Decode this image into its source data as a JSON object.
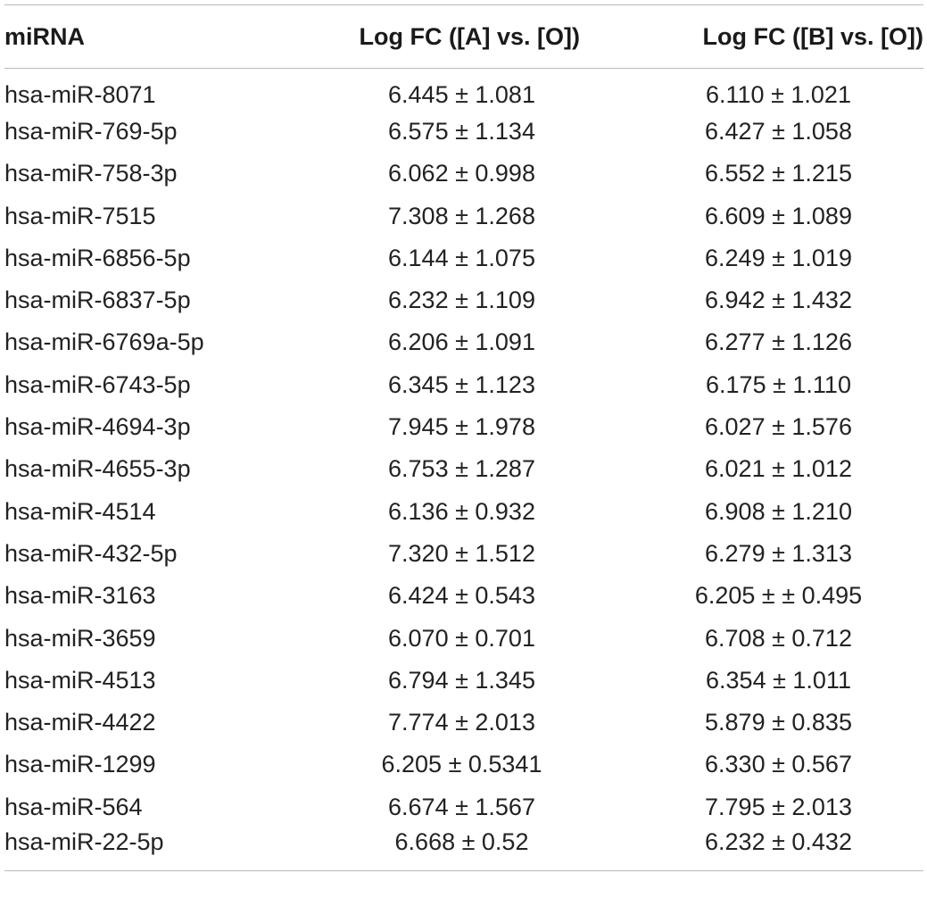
{
  "table": {
    "headers": [
      "miRNA",
      "Log FC ([A] vs. [O])",
      "Log FC ([B] vs. [O])"
    ],
    "rows": [
      [
        "hsa-miR-8071",
        "6.445 ± 1.081",
        "6.110 ± 1.021"
      ],
      [
        "hsa-miR-769-5p",
        "6.575 ± 1.134",
        "6.427 ± 1.058"
      ],
      [
        "hsa-miR-758-3p",
        "6.062 ± 0.998",
        "6.552 ± 1.215"
      ],
      [
        "hsa-miR-7515",
        "7.308 ± 1.268",
        "6.609 ± 1.089"
      ],
      [
        "hsa-miR-6856-5p",
        "6.144 ± 1.075",
        "6.249 ± 1.019"
      ],
      [
        "hsa-miR-6837-5p",
        "6.232 ± 1.109",
        "6.942 ± 1.432"
      ],
      [
        "hsa-miR-6769a-5p",
        "6.206 ± 1.091",
        "6.277 ± 1.126"
      ],
      [
        "hsa-miR-6743-5p",
        "6.345 ± 1.123",
        "6.175 ± 1.110"
      ],
      [
        "hsa-miR-4694-3p",
        "7.945 ± 1.978",
        "6.027 ± 1.576"
      ],
      [
        "hsa-miR-4655-3p",
        "6.753 ± 1.287",
        "6.021 ± 1.012"
      ],
      [
        "hsa-miR-4514",
        "6.136 ± 0.932",
        "6.908 ± 1.210"
      ],
      [
        "hsa-miR-432-5p",
        "7.320 ± 1.512",
        "6.279 ± 1.313"
      ],
      [
        "hsa-miR-3163",
        "6.424 ± 0.543",
        "6.205 ± ± 0.495"
      ],
      [
        "hsa-miR-3659",
        "6.070 ± 0.701",
        "6.708 ± 0.712"
      ],
      [
        "hsa-miR-4513",
        "6.794 ± 1.345",
        "6.354 ± 1.011"
      ],
      [
        "hsa-miR-4422",
        "7.774 ± 2.013",
        "5.879 ± 0.835"
      ],
      [
        "hsa-miR-1299",
        "6.205 ± 0.5341",
        "6.330 ± 0.567"
      ],
      [
        "hsa-miR-564",
        "6.674 ± 1.567",
        "7.795 ± 2.013"
      ],
      [
        "hsa-miR-22-5p",
        "6.668 ± 0.52",
        "6.232 ± 0.432"
      ]
    ]
  }
}
